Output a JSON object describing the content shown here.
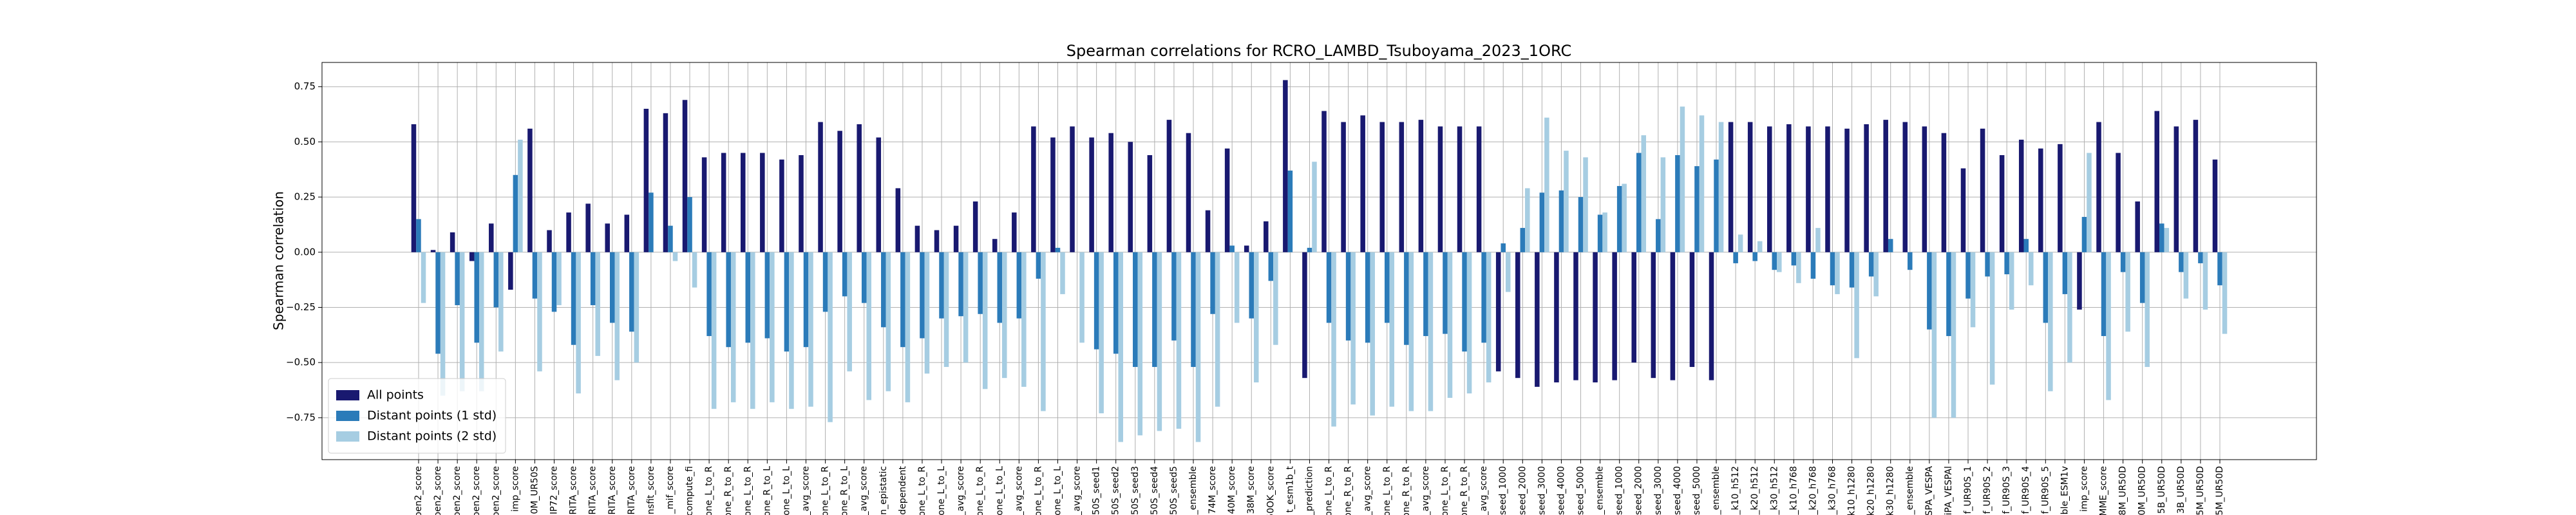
{
  "chart_data": {
    "type": "bar",
    "title": "Spearman correlations for RCRO_LAMBD_Tsuboyama_2023_1ORC",
    "ylabel": "Spearman correlation",
    "categories": [
      "pen2_score",
      "pen2_score",
      "pen2_score",
      "pen2_score",
      "pen2_score",
      "imp_score",
      "0M_UR50S",
      "IP72_score",
      "RITA_score",
      "RITA_score",
      "RITA_score",
      "RITA_score",
      "nsfit_score",
      "_mif_score",
      "f_compute_fi",
      "one_L_to_R",
      "one_R_to_R",
      "one_L_to_R",
      "one_R_to_L",
      "one_L_to_L",
      "_avg_score",
      "one_L_to_R",
      "one_R_to_L",
      "_avg_score",
      "n_epistatic",
      "dependent",
      "one_L_to_R",
      "one_L_to_L",
      "_avg_score",
      "one_L_to_R",
      "one_L_to_L",
      "_avg_score",
      "one_L_to_R",
      "one_L_to_L",
      "_avg_score",
      "50S_seed1",
      "50S_seed2",
      "50S_seed3",
      "50S_seed4",
      "50S_seed5",
      "_ensemble",
      "74M_score",
      "40M_score",
      "38M_score",
      "50OK_score",
      "t_esm1b_t",
      "_prediction",
      "one_L_to_R",
      "one_R_to_R",
      "_avg_score",
      "one_L_to_R",
      "one_R_to_R",
      "_avg_score",
      "one_L_to_R",
      "one_R_to_R",
      "_avg_score",
      "seed_1000",
      "seed_2000",
      "seed_3000",
      "seed_4000",
      "seed_5000",
      "_ensemble",
      "seed_1000",
      "seed_2000",
      "seed_3000",
      "seed_4000",
      "seed_5000",
      "_ensemble",
      "_k10_h512",
      "_k20_h512",
      "_k30_h512",
      "_k10_h768",
      "_k20_h768",
      "_k30_h768",
      "k10_h1280",
      "k20_h1280",
      "k30_h1280",
      "_ensemble",
      "SPA_VESPA",
      "iPA_VESPAl",
      "f_UR90S_1",
      "f_UR90S_2",
      "f_UR90S_3",
      "f_UR90S_4",
      "f_UR90S_5",
      "ble_ESM1v",
      "imp_score",
      "MME_score",
      "8M_UR50D",
      "0M_UR50D",
      "5B_UR50D",
      "3B_UR50D",
      "5M_UR50D",
      "5M_UR50D"
    ],
    "series": [
      {
        "name": "All points",
        "color": "#191970",
        "values": [
          0.58,
          0.01,
          0.09,
          -0.04,
          0.13,
          -0.17,
          0.56,
          0.1,
          0.18,
          0.22,
          0.13,
          0.17,
          0.65,
          0.63,
          0.69,
          0.43,
          0.45,
          0.45,
          0.45,
          0.42,
          0.44,
          0.59,
          0.55,
          0.58,
          0.52,
          0.29,
          0.12,
          0.1,
          0.12,
          0.23,
          0.06,
          0.18,
          0.57,
          0.52,
          0.57,
          0.52,
          0.54,
          0.5,
          0.44,
          0.6,
          0.54,
          0.19,
          0.47,
          0.03,
          0.14,
          0.78,
          -0.57,
          0.64,
          0.59,
          0.62,
          0.59,
          0.59,
          0.6,
          0.57,
          0.57,
          0.57,
          -0.54,
          -0.57,
          -0.61,
          -0.59,
          -0.58,
          -0.59,
          -0.58,
          -0.5,
          -0.57,
          -0.58,
          -0.52,
          -0.58,
          0.59,
          0.59,
          0.57,
          0.58,
          0.57,
          0.57,
          0.56,
          0.58,
          0.6,
          0.59,
          0.57,
          0.54,
          0.38,
          0.56,
          0.44,
          0.51,
          0.47,
          0.49,
          -0.26,
          0.59,
          0.45,
          0.23,
          0.64,
          0.57,
          0.6,
          0.42
        ]
      },
      {
        "name": "Distant points (1 std)",
        "color": "#2b7bb9",
        "values": [
          0.15,
          -0.46,
          -0.24,
          -0.41,
          -0.25,
          0.35,
          -0.21,
          -0.27,
          -0.42,
          -0.24,
          -0.32,
          -0.36,
          0.27,
          0.12,
          0.25,
          -0.38,
          -0.43,
          -0.41,
          -0.39,
          -0.45,
          -0.43,
          -0.27,
          -0.2,
          -0.23,
          -0.34,
          -0.43,
          -0.39,
          -0.3,
          -0.29,
          -0.28,
          -0.32,
          -0.3,
          -0.12,
          0.02,
          0.0,
          -0.44,
          -0.46,
          -0.52,
          -0.52,
          -0.4,
          -0.52,
          -0.28,
          0.03,
          -0.3,
          -0.13,
          0.37,
          0.02,
          -0.32,
          -0.4,
          -0.41,
          -0.32,
          -0.42,
          -0.38,
          -0.37,
          -0.45,
          -0.41,
          0.04,
          0.11,
          0.27,
          0.28,
          0.25,
          0.17,
          0.3,
          0.45,
          0.15,
          0.44,
          0.39,
          0.42,
          -0.05,
          -0.04,
          -0.08,
          -0.06,
          -0.12,
          -0.15,
          -0.16,
          -0.11,
          0.06,
          -0.08,
          -0.35,
          -0.38,
          -0.21,
          -0.11,
          -0.1,
          0.06,
          -0.32,
          -0.19,
          0.16,
          -0.38,
          -0.09,
          -0.23,
          0.13,
          -0.09,
          -0.05,
          -0.15
        ]
      },
      {
        "name": "Distant points (2 std)",
        "color": "#a6cde2",
        "values": [
          -0.23,
          -0.65,
          -0.63,
          -0.63,
          -0.45,
          0.51,
          -0.54,
          -0.24,
          -0.64,
          -0.47,
          -0.58,
          -0.5,
          0.0,
          -0.04,
          -0.16,
          -0.71,
          -0.68,
          -0.71,
          -0.68,
          -0.71,
          -0.7,
          -0.77,
          -0.54,
          -0.67,
          -0.63,
          -0.68,
          -0.55,
          -0.52,
          -0.5,
          -0.62,
          -0.57,
          -0.61,
          -0.72,
          -0.19,
          -0.41,
          -0.73,
          -0.86,
          -0.83,
          -0.81,
          -0.8,
          -0.86,
          -0.7,
          -0.32,
          -0.59,
          -0.42,
          0.0,
          0.41,
          -0.79,
          -0.69,
          -0.74,
          -0.7,
          -0.72,
          -0.72,
          -0.66,
          -0.64,
          -0.59,
          -0.18,
          0.29,
          0.61,
          0.46,
          0.43,
          0.18,
          0.31,
          0.53,
          0.43,
          0.66,
          0.62,
          0.59,
          0.08,
          0.05,
          -0.09,
          -0.14,
          0.11,
          -0.19,
          -0.48,
          -0.2,
          0.0,
          0.0,
          -0.75,
          -0.75,
          -0.34,
          -0.6,
          -0.26,
          -0.15,
          -0.63,
          -0.5,
          0.45,
          -0.67,
          -0.36,
          -0.52,
          0.11,
          -0.21,
          -0.26,
          -0.37
        ]
      }
    ],
    "ylim": [
      -0.94,
      0.86
    ],
    "yticks": [
      {
        "value": -0.75,
        "label": "−0.75"
      },
      {
        "value": -0.5,
        "label": "−0.50"
      },
      {
        "value": -0.25,
        "label": "−0.25"
      },
      {
        "value": 0,
        "label": "0.00"
      },
      {
        "value": 0.25,
        "label": "0.25"
      },
      {
        "value": 0.5,
        "label": "0.50"
      },
      {
        "value": 0.75,
        "label": "0.75"
      }
    ],
    "grid": true,
    "legend": "lower left"
  }
}
